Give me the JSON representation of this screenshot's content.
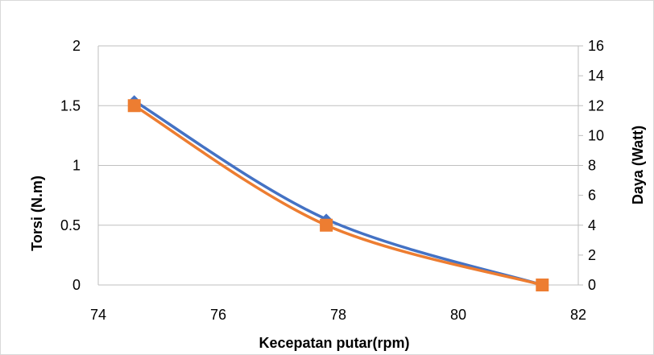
{
  "chart_data": {
    "type": "scatter",
    "title": "",
    "xlabel": "Kecepatan putar(rpm)",
    "ylabel_left": "Torsi  (N.m)",
    "ylabel_right": "Daya (Watt)",
    "xlim": [
      74,
      82
    ],
    "xticks": [
      "74",
      "76",
      "78",
      "80",
      "82"
    ],
    "ylim_left": [
      0,
      2
    ],
    "yticks_left": [
      "0",
      "0.5",
      "1",
      "1.5",
      "2"
    ],
    "ylim_right": [
      0,
      16
    ],
    "yticks_right": [
      "0",
      "2",
      "4",
      "6",
      "8",
      "10",
      "12",
      "14",
      "16"
    ],
    "grid": "horizontal",
    "series": [
      {
        "axis": "left",
        "color": "#4472C4",
        "marker": "diamond",
        "smooth": true,
        "x": [
          74.6,
          77.8,
          81.4
        ],
        "y": [
          1.54,
          0.55,
          0.0
        ]
      },
      {
        "axis": "right",
        "color": "#ED7D31",
        "marker": "square",
        "smooth": true,
        "x": [
          74.6,
          77.8,
          81.4
        ],
        "y": [
          12.0,
          4.0,
          0.0
        ]
      }
    ]
  }
}
